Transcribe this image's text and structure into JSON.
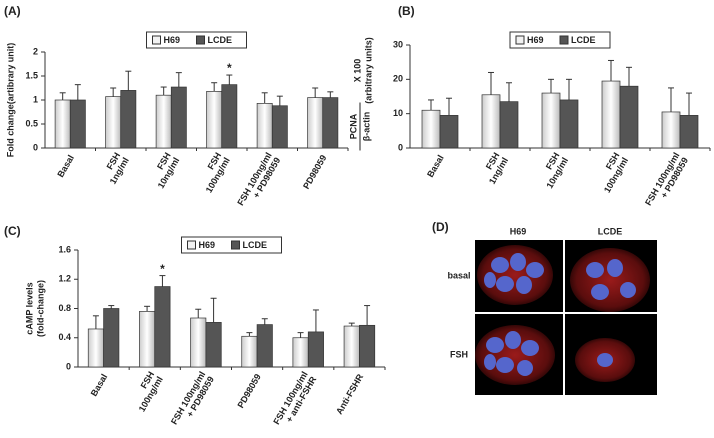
{
  "chart_data": [
    {
      "type": "bar",
      "panel": "(A)",
      "ylabel": [
        "Fold change(artibrary unit)"
      ],
      "categories": [
        [
          "Basal"
        ],
        [
          "FSH",
          "1ng/ml"
        ],
        [
          "FSH",
          "10ng/ml"
        ],
        [
          "FSH",
          "100ng/ml"
        ],
        [
          "FSH 100ng/ml",
          "+ PD98059"
        ],
        [
          "PD98059"
        ]
      ],
      "series": [
        {
          "name": "H69",
          "color": "#f2f2f2",
          "values": [
            1.0,
            1.07,
            1.1,
            1.18,
            0.93,
            1.05
          ],
          "errors": [
            0.15,
            0.18,
            0.17,
            0.18,
            0.22,
            0.2
          ]
        },
        {
          "name": "LCDE",
          "color": "#555555",
          "values": [
            1.0,
            1.2,
            1.27,
            1.32,
            0.88,
            1.05
          ],
          "errors": [
            0.32,
            0.4,
            0.3,
            0.2,
            0.2,
            0.12
          ]
        }
      ],
      "ylim": [
        0,
        2
      ],
      "yticks": [
        0,
        0.5,
        1,
        1.5,
        2
      ],
      "annotation": "*"
    },
    {
      "type": "bar",
      "panel": "(B)",
      "ylabel": [
        "PCNA",
        "β-actin",
        "X 100",
        "(arbitrary units)"
      ],
      "categories": [
        [
          "Basal"
        ],
        [
          "FSH",
          "1ng/ml"
        ],
        [
          "FSH",
          "10ng/ml"
        ],
        [
          "FSH",
          "100ng/ml"
        ],
        [
          "FSH 100ng/ml",
          "+ PD98059"
        ]
      ],
      "series": [
        {
          "name": "H69",
          "color": "#f2f2f2",
          "values": [
            11,
            15.5,
            16,
            19.5,
            10.5
          ],
          "errors": [
            3,
            6.5,
            4,
            6,
            7
          ]
        },
        {
          "name": "LCDE",
          "color": "#555555",
          "values": [
            9.5,
            13.5,
            14,
            18,
            9.5
          ],
          "errors": [
            5,
            5.5,
            6,
            5.5,
            6.5
          ]
        }
      ],
      "ylim": [
        0,
        30
      ],
      "yticks": [
        0,
        10,
        20,
        30
      ]
    },
    {
      "type": "bar",
      "panel": "(C)",
      "ylabel": [
        "cAMP levels",
        "(fold-change)"
      ],
      "categories": [
        [
          "Basal"
        ],
        [
          "FSH",
          "100ng/ml"
        ],
        [
          "FSH 100ng/ml",
          "+ PD98059"
        ],
        [
          "PD98059"
        ],
        [
          "FSH 100ng/ml",
          "+ anti-FSHR"
        ],
        [
          "Anti-FSHR"
        ]
      ],
      "series": [
        {
          "name": "H69",
          "color": "#f2f2f2",
          "values": [
            0.52,
            0.76,
            0.67,
            0.42,
            0.4,
            0.56
          ],
          "errors": [
            0.18,
            0.07,
            0.12,
            0.05,
            0.07,
            0.04
          ]
        },
        {
          "name": "LCDE",
          "color": "#555555",
          "values": [
            0.8,
            1.1,
            0.61,
            0.58,
            0.48,
            0.57
          ],
          "errors": [
            0.04,
            0.15,
            0.33,
            0.08,
            0.3,
            0.27
          ]
        }
      ],
      "ylim": [
        0,
        1.6
      ],
      "yticks": [
        0,
        0.4,
        0.8,
        1.2,
        1.6
      ],
      "annotation": "*"
    }
  ],
  "image_panel": {
    "panel": "(D)",
    "columns": [
      "H69",
      "LCDE"
    ],
    "rows": [
      "basal",
      "FSH"
    ]
  }
}
